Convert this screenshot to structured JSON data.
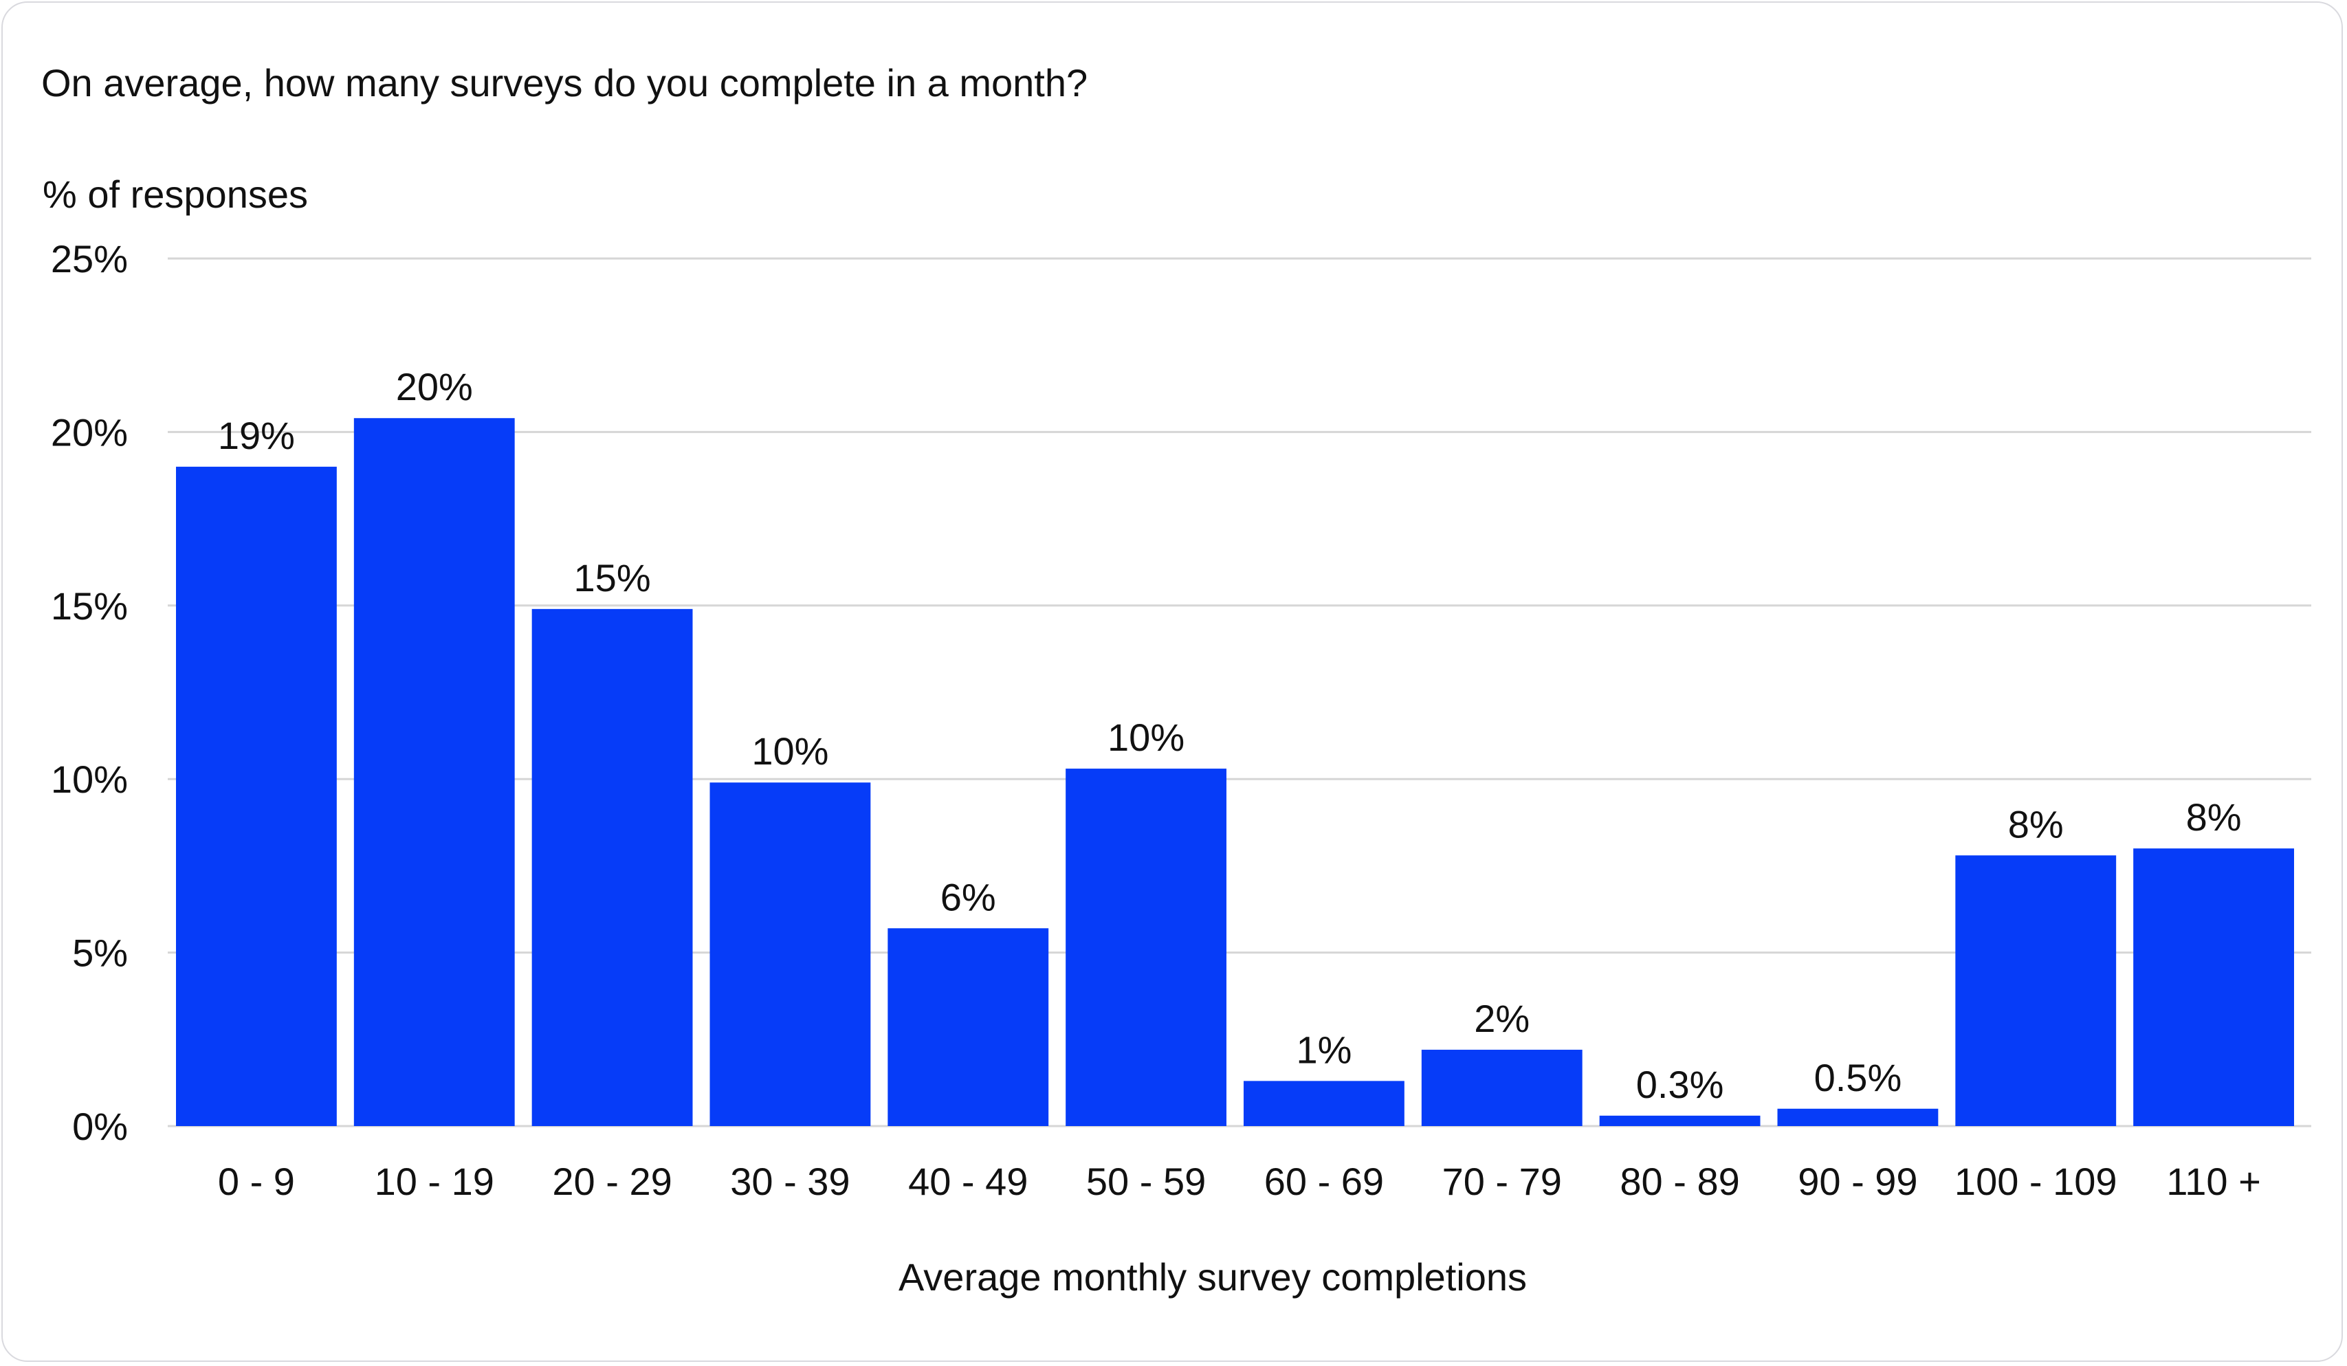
{
  "chart_data": {
    "type": "bar",
    "title": "On average, how many surveys do you complete in a month?",
    "ylabel": "% of responses",
    "xlabel": "Average monthly survey completions",
    "categories": [
      "0 - 9",
      "10 - 19",
      "20 - 29",
      "30 - 39",
      "40 - 49",
      "50 - 59",
      "60 - 69",
      "70 - 79",
      "80 - 89",
      "90 - 99",
      "100 - 109",
      "110 +"
    ],
    "values": [
      19.0,
      20.4,
      14.9,
      9.9,
      5.7,
      10.3,
      1.3,
      2.2,
      0.3,
      0.5,
      7.8,
      8.0
    ],
    "data_labels": [
      "19%",
      "20%",
      "15%",
      "10%",
      "6%",
      "10%",
      "1%",
      "2%",
      "0.3%",
      "0.5%",
      "8%",
      "8%"
    ],
    "ylim": [
      0,
      25
    ],
    "yticks": [
      0,
      5,
      10,
      15,
      20,
      25
    ],
    "ytick_labels": [
      "0%",
      "5%",
      "10%",
      "15%",
      "20%",
      "25%"
    ],
    "grid": true,
    "legend": "none",
    "colors": {
      "bar": "#063cf8",
      "grid": "#d6d6d6",
      "text": "#111111",
      "border": "#d9d9de"
    }
  }
}
